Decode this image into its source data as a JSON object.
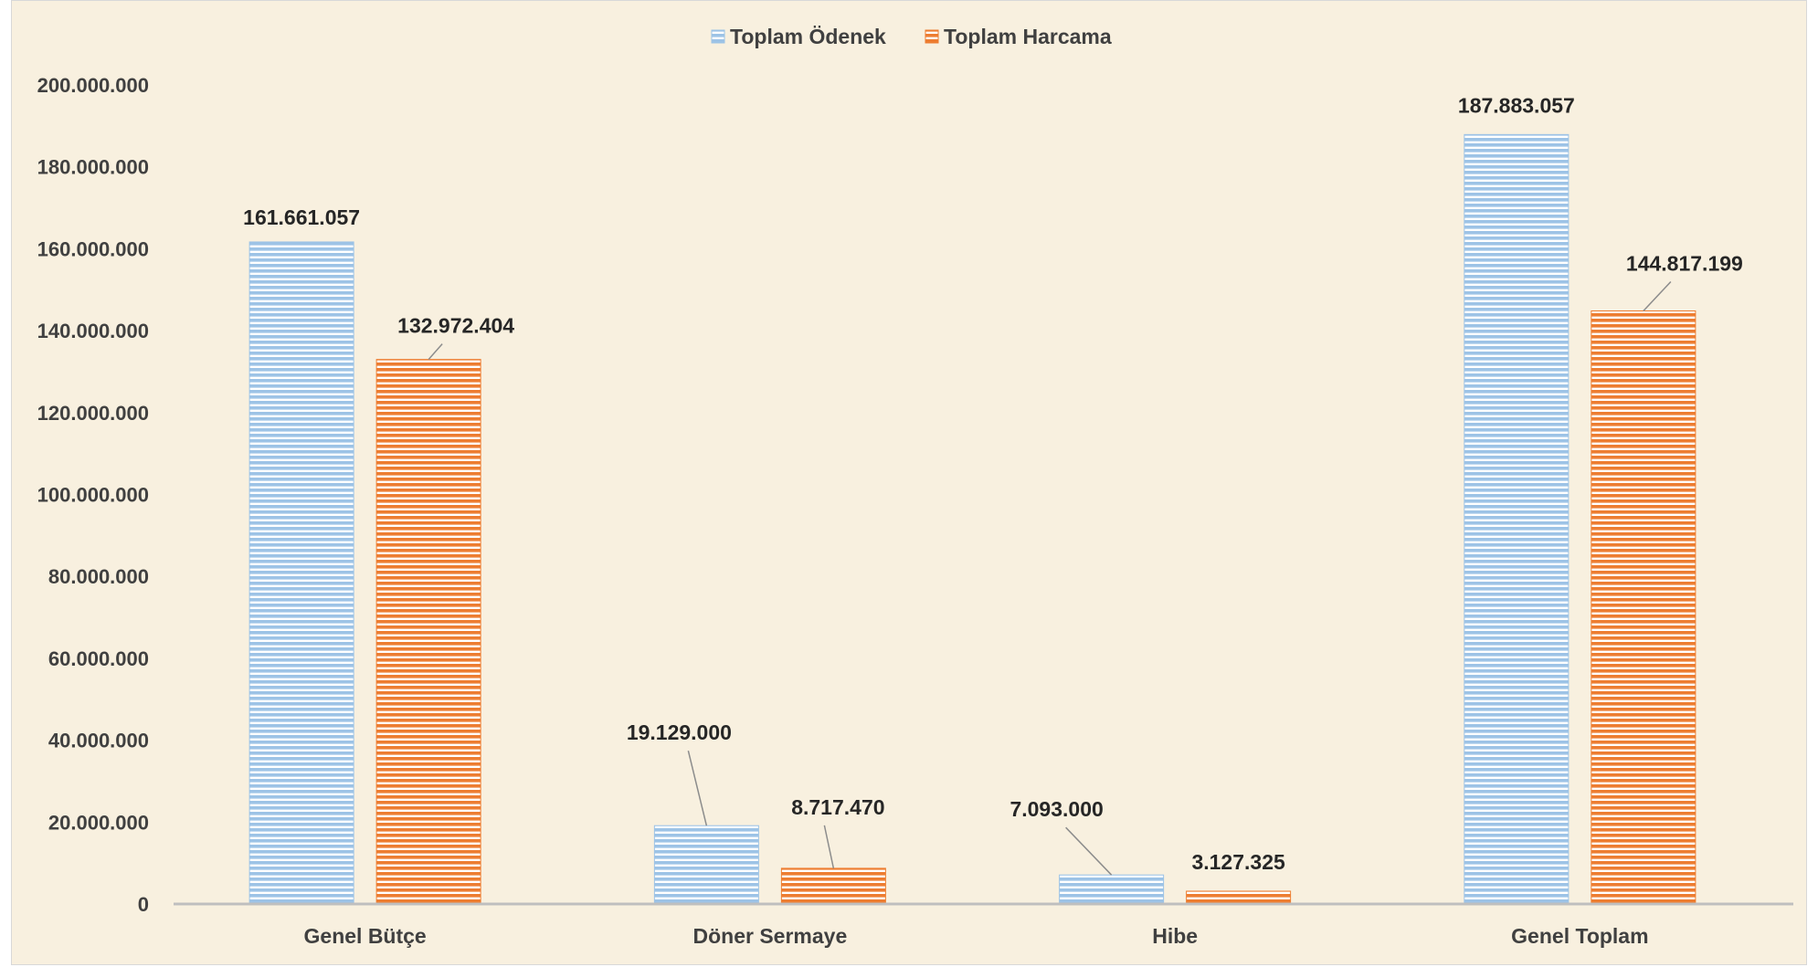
{
  "chart_data": {
    "type": "bar",
    "categories": [
      "Genel Bütçe",
      "Döner Sermaye",
      "Hibe",
      "Genel Toplam"
    ],
    "series": [
      {
        "name": "Toplam Ödenek",
        "values": [
          161661057,
          19129000,
          7093000,
          187883057
        ],
        "labels": [
          "161.661.057",
          "19.129.000",
          "7.093.000",
          "187.883.057"
        ],
        "color": "#9dc3e6"
      },
      {
        "name": "Toplam Harcama",
        "values": [
          132972404,
          8717470,
          3127325,
          144817199
        ],
        "labels": [
          "132.972.404",
          "8.717.470",
          "3.127.325",
          "144.817.199"
        ],
        "color": "#ed7d31"
      }
    ],
    "ylim": [
      0,
      200000000
    ],
    "yticks": [
      0,
      20000000,
      40000000,
      60000000,
      80000000,
      100000000,
      120000000,
      140000000,
      160000000,
      180000000,
      200000000
    ],
    "ytick_labels": [
      "0",
      "20.000.000",
      "40.000.000",
      "60.000.000",
      "80.000.000",
      "100.000.000",
      "120.000.000",
      "140.000.000",
      "160.000.000",
      "180.000.000",
      "200.000.000"
    ],
    "title": "",
    "xlabel": "",
    "ylabel": "",
    "grid": false,
    "legend_position": "top-center",
    "bar_pattern": "horizontal-stripes"
  }
}
